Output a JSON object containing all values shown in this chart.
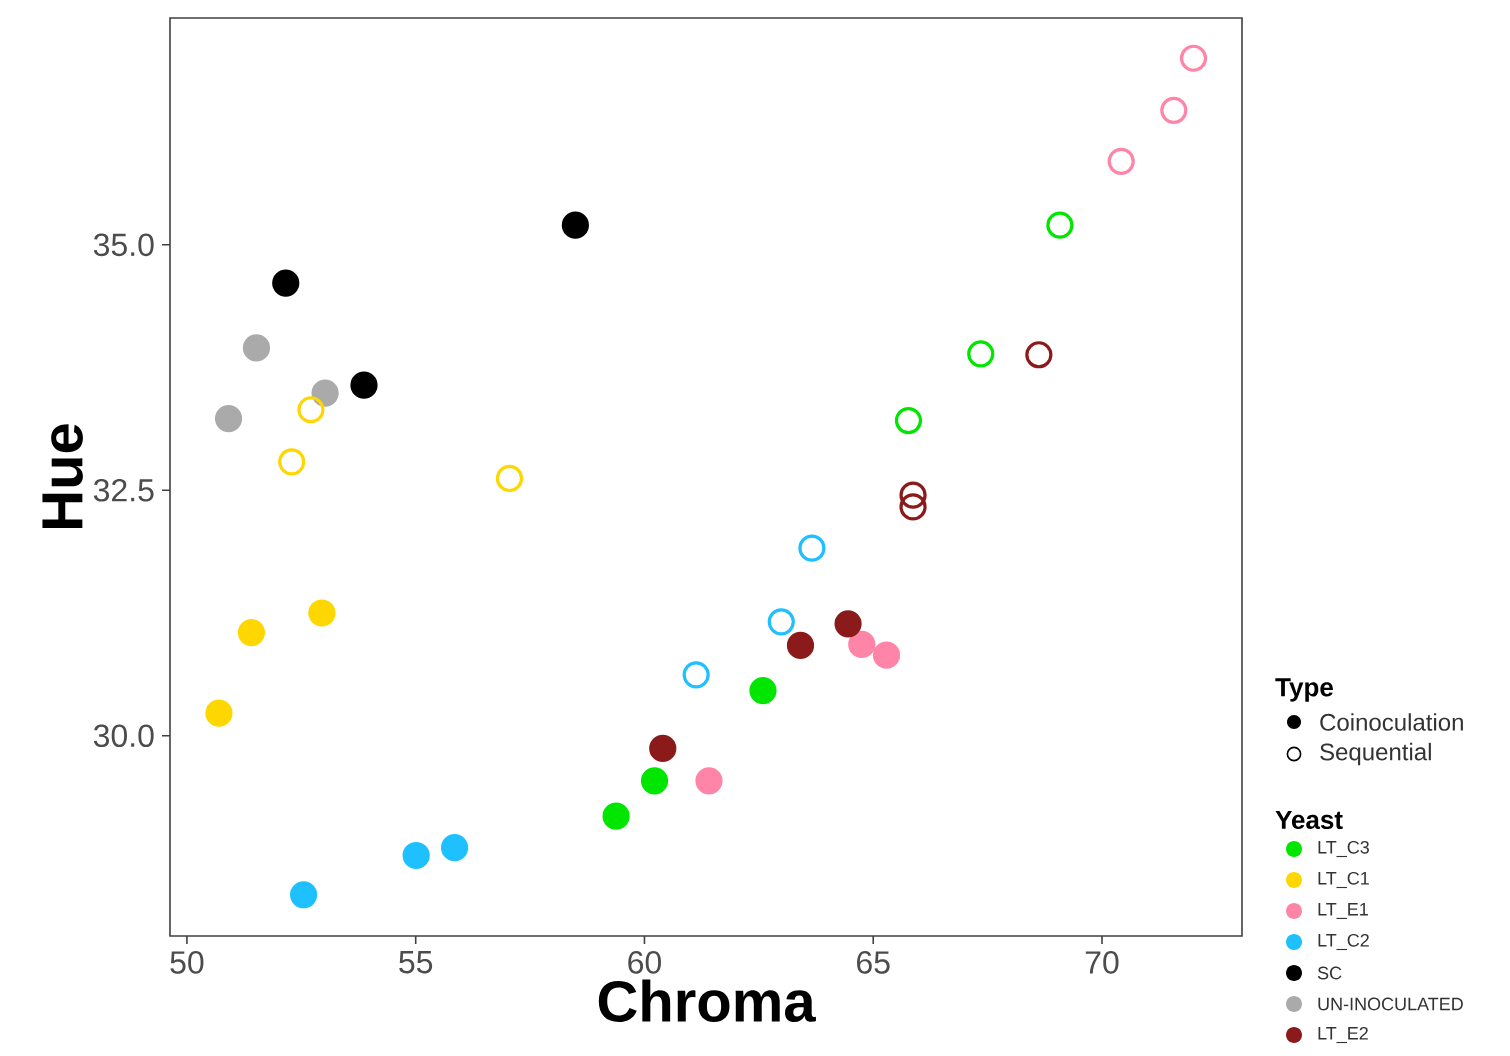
{
  "chart_data": {
    "type": "scatter",
    "xlabel": "Chroma",
    "ylabel": "Hue",
    "xlim": [
      49.63,
      73.06
    ],
    "ylim": [
      27.96,
      37.31
    ],
    "xticks": [
      50,
      55,
      60,
      65,
      70
    ],
    "yticks": [
      {
        "value": 30,
        "label": "30.0"
      },
      {
        "value": 32.5,
        "label": "32.5"
      },
      {
        "value": 35,
        "label": "35.0"
      }
    ],
    "grid": false,
    "marker": "circle",
    "legend": "right",
    "legend_title": "Yeast",
    "annotations": [
      "Type",
      "Coinoculation",
      "Sequential"
    ],
    "series": [
      {
        "name": "LT_C3",
        "color": "#00e600",
        "x": [
          59.38,
          60.22,
          62.59
        ],
        "values": [
          29.18,
          29.54,
          30.46
        ]
      },
      {
        "name": "LT_C1",
        "color": "#ffd700",
        "x": [
          50.7,
          51.41,
          52.95
        ],
        "values": [
          30.23,
          31.05,
          31.25
        ]
      },
      {
        "name": "LT_E1",
        "color": "#ff85a8",
        "x": [
          61.41,
          64.75,
          65.29
        ],
        "values": [
          29.54,
          30.93,
          30.82
        ]
      },
      {
        "name": "LT_C2",
        "color": "#1ec0ff",
        "x": [
          52.55,
          55.01,
          55.85
        ],
        "values": [
          28.38,
          28.78,
          28.86
        ]
      },
      {
        "name": "SC",
        "color": "#000000",
        "x": [
          52.16,
          53.87,
          58.49
        ],
        "values": [
          34.61,
          33.57,
          35.2
        ]
      },
      {
        "name": "UN-INOCULATED",
        "color": "#aaaaaa",
        "x": [
          50.91,
          51.52,
          53.02
        ],
        "values": [
          33.23,
          33.95,
          33.49
        ]
      },
      {
        "name": "LT_E2",
        "color": "#8b1a1a",
        "x": [
          60.4,
          63.41,
          64.45
        ],
        "values": [
          29.87,
          30.92,
          31.14
        ]
      },
      {
        "color": "#00e600",
        "x": [
          65.77,
          67.35,
          69.08
        ],
        "values": [
          33.21,
          33.89,
          35.2
        ]
      },
      {
        "color": "#ffd700",
        "x": [
          52.71,
          52.29,
          57.05
        ],
        "values": [
          33.32,
          32.79,
          32.62
        ]
      },
      {
        "color": "#ff85a8",
        "x": [
          70.42,
          71.57,
          72.0
        ],
        "values": [
          35.85,
          36.37,
          36.9
        ]
      },
      {
        "color": "#1ec0ff",
        "x": [
          61.13,
          62.99,
          63.66
        ],
        "values": [
          30.62,
          31.16,
          31.91
        ]
      },
      {
        "color": "#8b1a1a",
        "x": [
          65.87,
          65.87,
          68.62
        ],
        "values": [
          32.45,
          32.33,
          33.88
        ]
      }
    ]
  }
}
